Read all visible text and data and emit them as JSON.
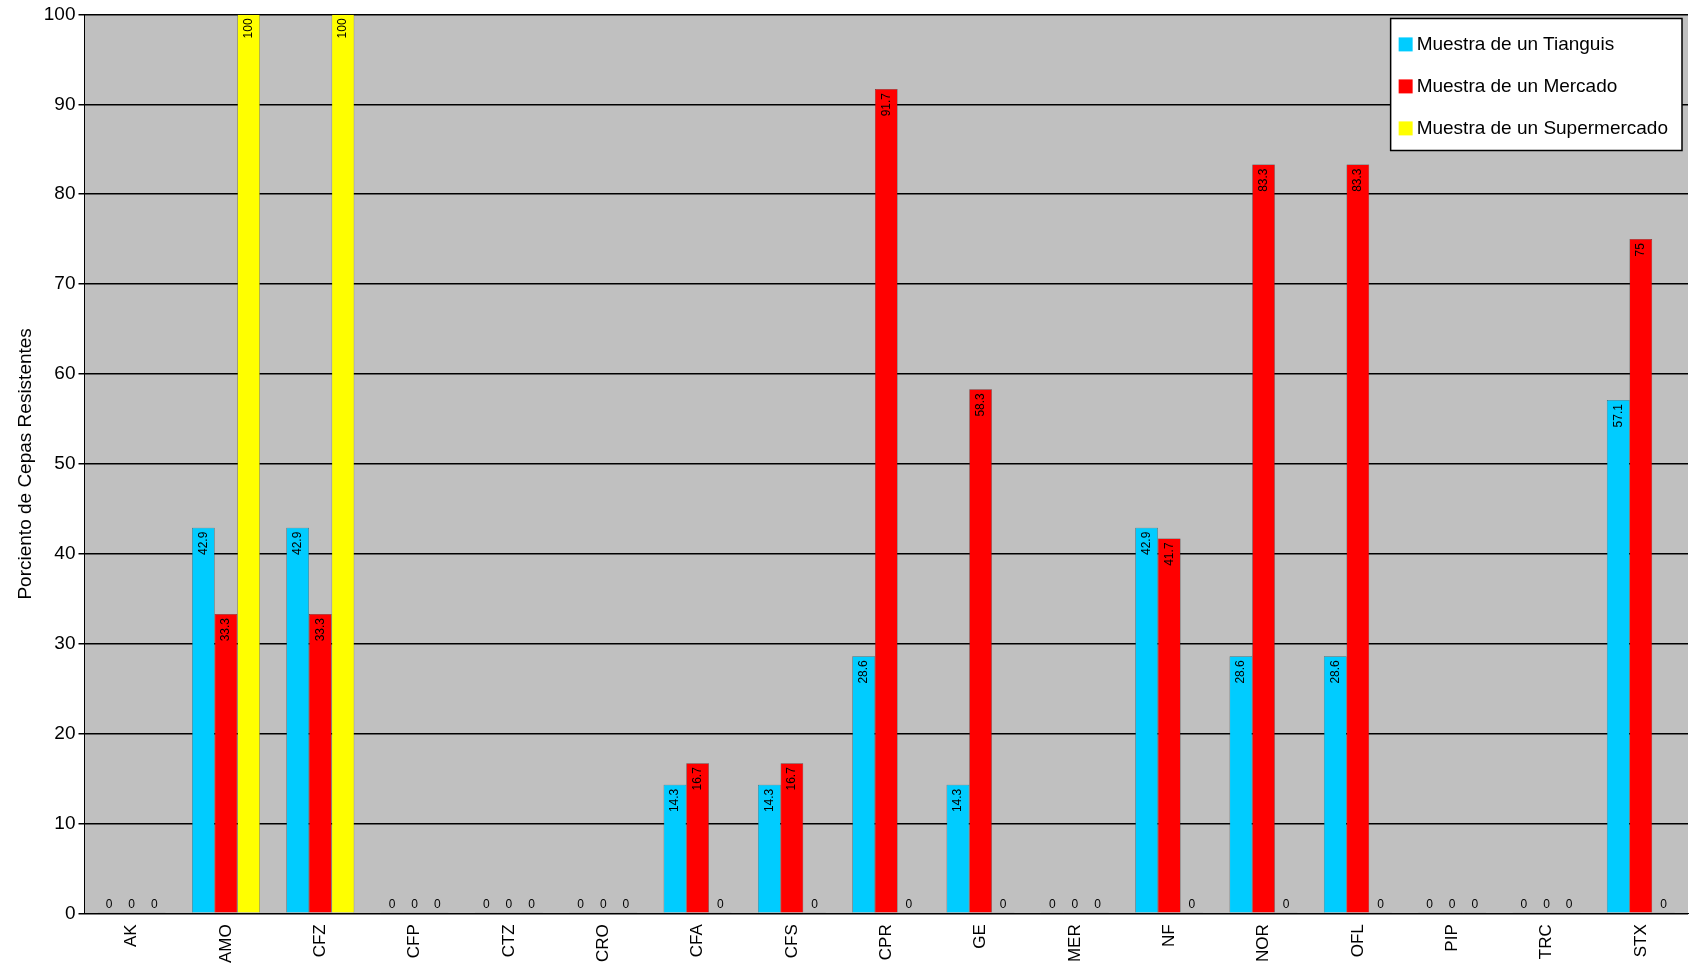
{
  "chart_data": {
    "type": "bar",
    "ylabel": "Porciento de Cepas Resistentes",
    "categories": [
      "AK",
      "AMO",
      "CFZ",
      "CFP",
      "CTZ",
      "CRO",
      "CFA",
      "CFS",
      "CPR",
      "GE",
      "MER",
      "NF",
      "NOR",
      "OFL",
      "PIP",
      "TRC",
      "STX"
    ],
    "series": [
      {
        "name": "Muestra de un Tianguis",
        "color": "#00ccff",
        "values": [
          0,
          42.9,
          42.9,
          0,
          0,
          0,
          14.3,
          14.3,
          28.6,
          14.3,
          0,
          42.9,
          28.6,
          28.6,
          0,
          0,
          57.1
        ]
      },
      {
        "name": "Muestra de un Mercado",
        "color": "#ff0000",
        "values": [
          0,
          33.3,
          33.3,
          0,
          0,
          0,
          16.7,
          16.7,
          91.7,
          58.3,
          0,
          41.7,
          83.3,
          83.3,
          0,
          0,
          75
        ]
      },
      {
        "name": "Muestra de un Supermercado",
        "color": "#ffff00",
        "values": [
          0,
          100,
          100,
          0,
          0,
          0,
          0,
          0,
          0,
          0,
          0,
          0,
          0,
          0,
          0,
          0,
          0
        ]
      }
    ],
    "ylim": [
      0,
      100
    ],
    "yticks": [
      0,
      10,
      20,
      30,
      40,
      50,
      60,
      70,
      80,
      90,
      100
    ],
    "grid": "y",
    "legend": "top right",
    "data_labels": true
  }
}
